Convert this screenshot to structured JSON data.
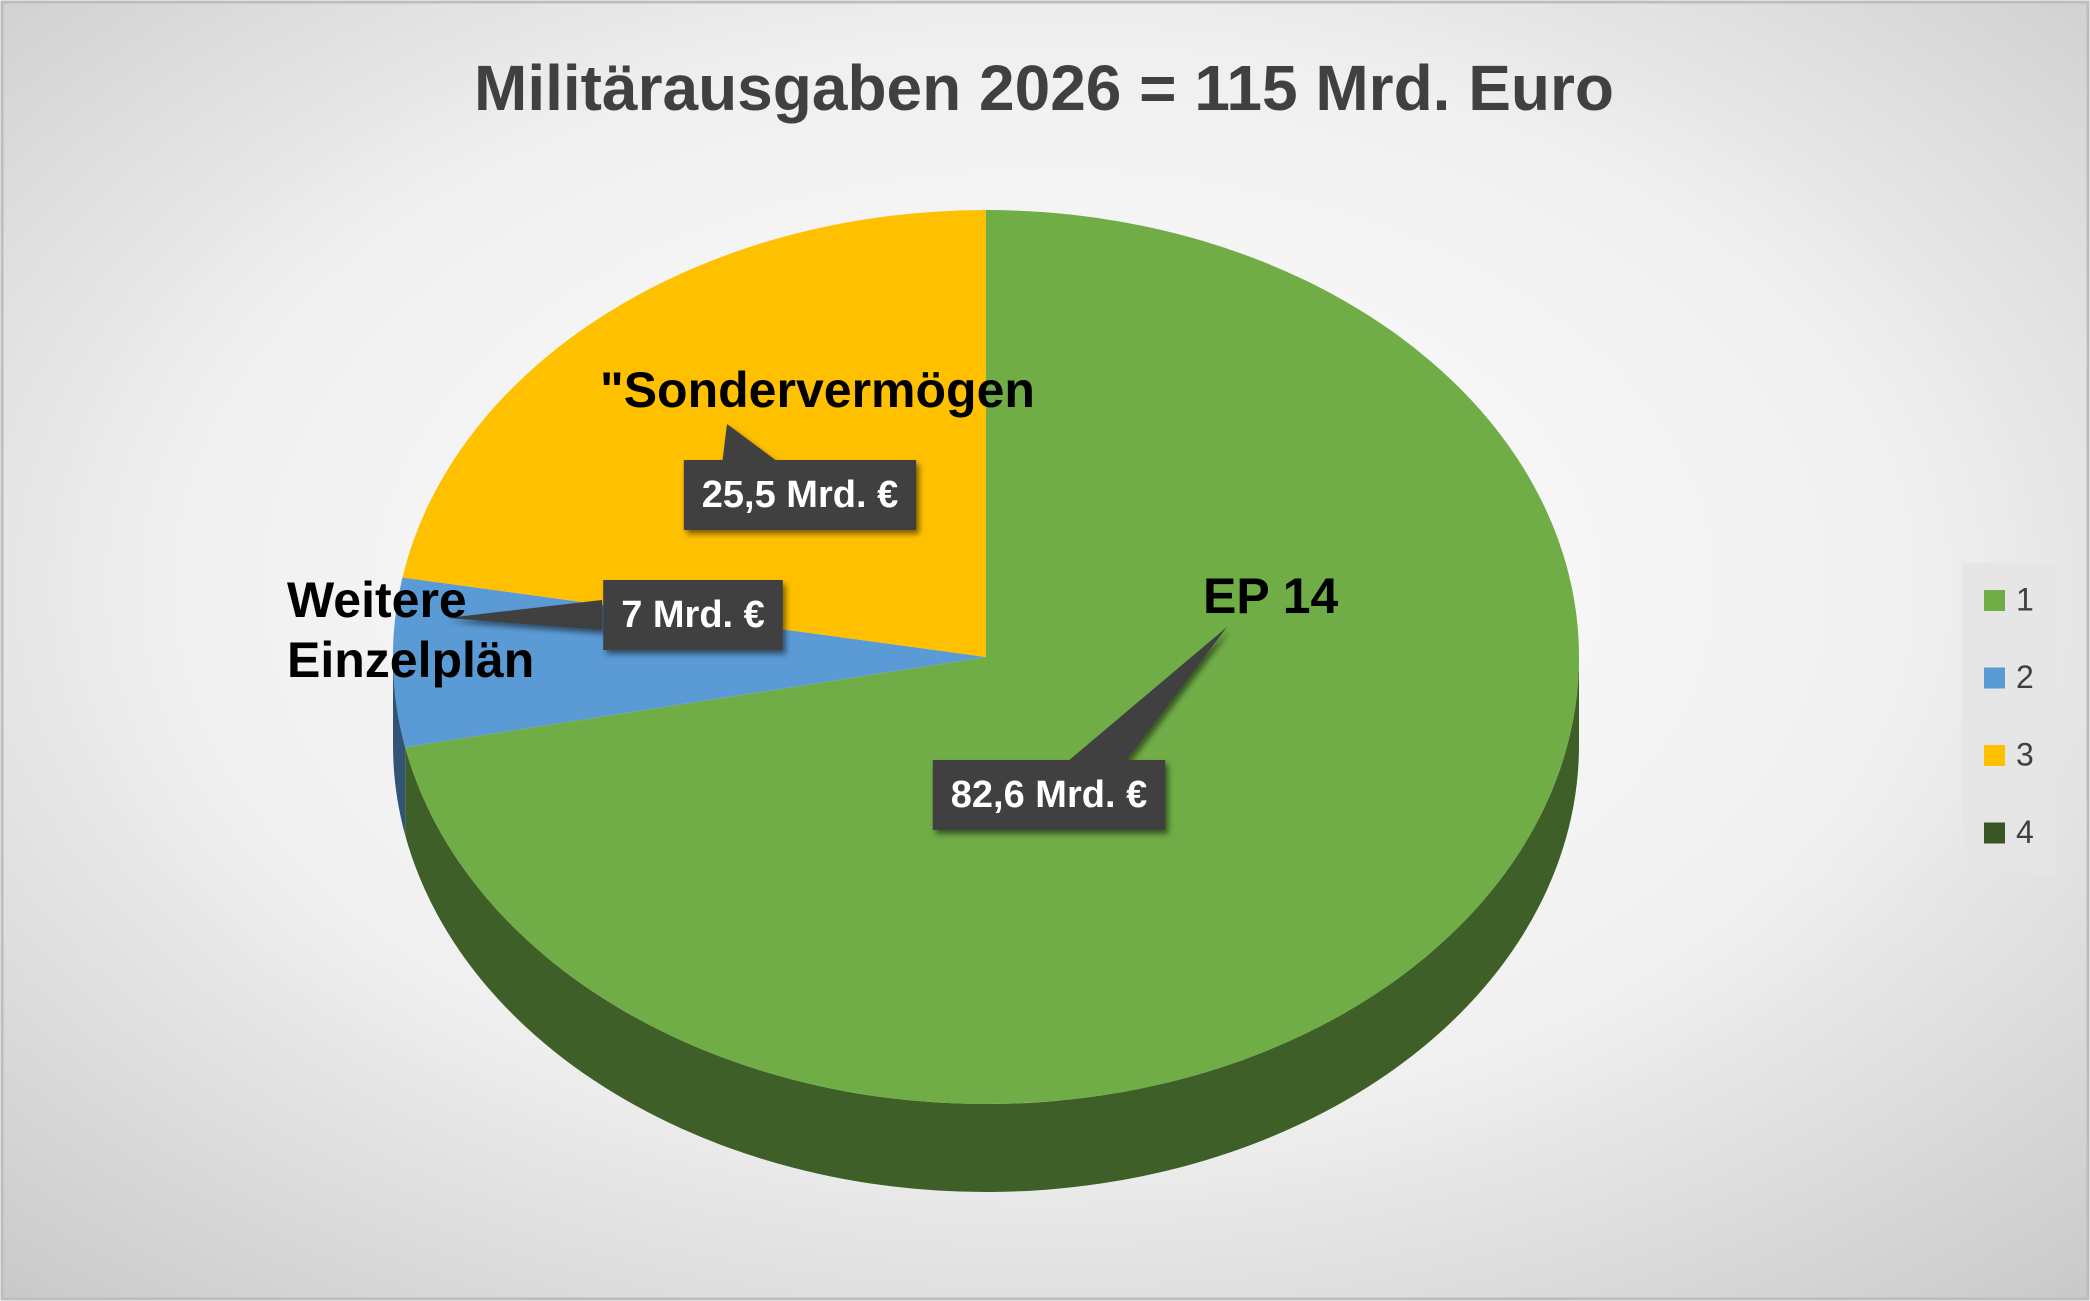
{
  "chart_data": {
    "type": "pie",
    "title": "Militärausgaben 2026  =  115 Mrd. Euro",
    "categories": [
      "1",
      "2",
      "3",
      "4"
    ],
    "values": [
      82.6,
      7,
      25.5,
      null
    ],
    "value_labels": [
      "82,6 Mrd. €",
      "7 Mrd. €",
      "25,5 Mrd. €",
      null
    ],
    "slice_labels": [
      "EP 14",
      "Weitere Einzelplän",
      "\"Sondervermögen",
      null
    ],
    "colors": [
      "#70ad47",
      "#5b9bd5",
      "#ffc000",
      "#375623"
    ],
    "legend": "right"
  }
}
